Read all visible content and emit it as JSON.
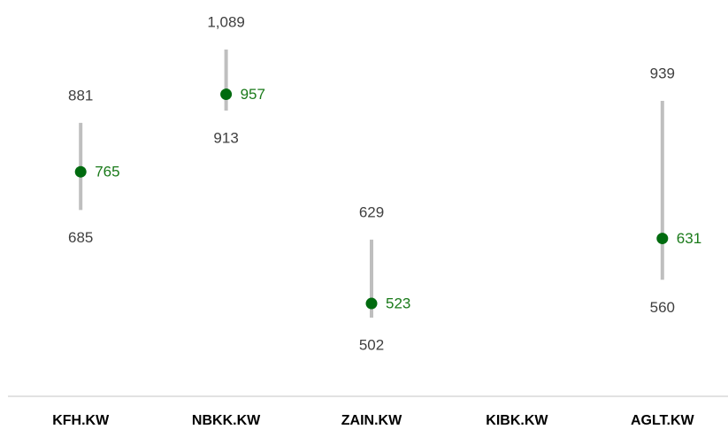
{
  "chart_data": {
    "type": "range",
    "categories": [
      "KFH.KW",
      "NBKK.KW",
      "ZAIN.KW",
      "KIBK.KW",
      "AGLT.KW"
    ],
    "high": [
      881,
      1089,
      629,
      null,
      939
    ],
    "high_labels": [
      "881",
      "1,089",
      "629",
      null,
      "939"
    ],
    "low": [
      685,
      913,
      502,
      null,
      560
    ],
    "current": [
      765,
      957,
      523,
      null,
      631
    ],
    "range_color": "#bfbfbf",
    "current_color": "#006b0f",
    "current_label_color": "#1a7a1a",
    "ylim": [
      400,
      1250
    ],
    "log_scale": true,
    "grid": false
  }
}
